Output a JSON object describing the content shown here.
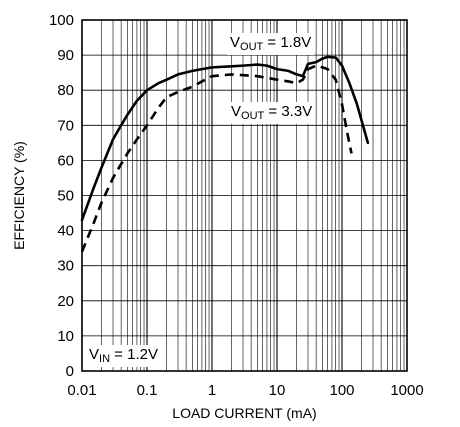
{
  "chart_data": {
    "type": "line",
    "xlabel": "LOAD CURRENT (mA)",
    "ylabel": "EFFICIENCY (%)",
    "x_scale": "log",
    "xlim": [
      0.01,
      1000
    ],
    "ylim": [
      0,
      100
    ],
    "grid": true,
    "x_ticks": [
      "0.01",
      "0.1",
      "1",
      "10",
      "100",
      "1000"
    ],
    "y_ticks": [
      "0",
      "10",
      "20",
      "30",
      "40",
      "50",
      "60",
      "70",
      "80",
      "90",
      "100"
    ],
    "annotations": {
      "vin": {
        "main": "V",
        "sub": "IN",
        "rest": " = 1.2V"
      },
      "vout1": {
        "main": "V",
        "sub": "OUT",
        "rest": " = 1.8V"
      },
      "vout2": {
        "main": "V",
        "sub": "OUT",
        "rest": " = 3.3V"
      }
    },
    "series": [
      {
        "style": "solid",
        "points": [
          [
            0.01,
            43
          ],
          [
            0.015,
            52
          ],
          [
            0.02,
            58
          ],
          [
            0.03,
            66
          ],
          [
            0.04,
            70
          ],
          [
            0.05,
            73
          ],
          [
            0.07,
            77
          ],
          [
            0.1,
            80
          ],
          [
            0.15,
            82
          ],
          [
            0.2,
            83
          ],
          [
            0.3,
            84.5
          ],
          [
            0.5,
            85.5
          ],
          [
            0.7,
            86
          ],
          [
            1,
            86.5
          ],
          [
            2,
            86.8
          ],
          [
            3,
            87
          ],
          [
            5,
            87.3
          ],
          [
            7,
            87
          ],
          [
            10,
            86
          ],
          [
            15,
            85.5
          ],
          [
            20,
            84.5
          ],
          [
            25,
            84
          ],
          [
            30,
            87.5
          ],
          [
            40,
            88
          ],
          [
            50,
            89
          ],
          [
            60,
            89.5
          ],
          [
            80,
            89.3
          ],
          [
            100,
            87
          ],
          [
            130,
            82
          ],
          [
            170,
            76
          ],
          [
            250,
            65
          ]
        ]
      },
      {
        "style": "dashed",
        "points": [
          [
            0.01,
            34
          ],
          [
            0.015,
            42
          ],
          [
            0.02,
            48
          ],
          [
            0.03,
            55
          ],
          [
            0.05,
            62
          ],
          [
            0.07,
            66
          ],
          [
            0.1,
            70
          ],
          [
            0.15,
            75
          ],
          [
            0.2,
            78
          ],
          [
            0.3,
            79.5
          ],
          [
            0.5,
            81
          ],
          [
            0.7,
            82.5
          ],
          [
            1,
            84
          ],
          [
            2,
            84.5
          ],
          [
            5,
            84
          ],
          [
            10,
            83
          ],
          [
            15,
            82.5
          ],
          [
            20,
            82
          ],
          [
            25,
            83
          ],
          [
            30,
            86
          ],
          [
            40,
            87
          ],
          [
            50,
            86.5
          ],
          [
            60,
            86
          ],
          [
            80,
            83
          ],
          [
            100,
            76
          ],
          [
            120,
            68
          ],
          [
            140,
            62
          ]
        ]
      }
    ]
  }
}
